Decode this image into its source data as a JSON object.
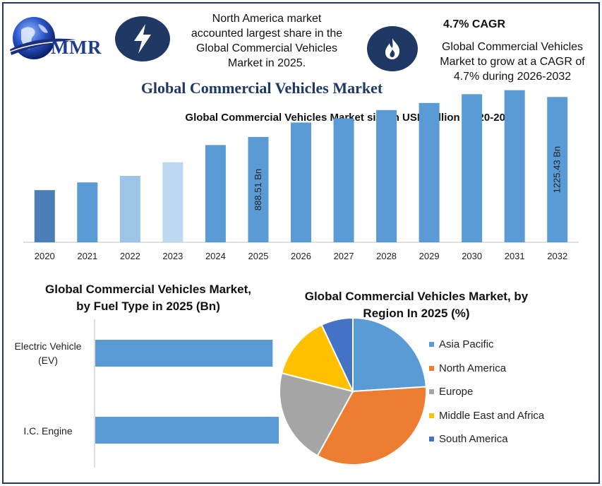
{
  "brand": {
    "name": "MMR"
  },
  "header": {
    "info_left": [
      "North America market",
      "accounted largest share in the",
      "Global Commercial Vehicles",
      "Market in 2025."
    ],
    "cagr_title": "4.7% CAGR",
    "info_right": [
      "Global Commercial Vehicles",
      "Market to grow at a CAGR of",
      "4.7% during 2026-2032"
    ],
    "left_icon": "lightning-bolt-icon",
    "right_icon": "flame-icon"
  },
  "main_title": "Global Commercial Vehicles Market",
  "colors": {
    "frame": "#1f3864",
    "bar_main": "#5b9bd5",
    "bar_2020": "#4a7fb5",
    "bar_2022": "#9dc3e6",
    "bar_2023": "#bdd7ee",
    "asia_pacific": "#5b9bd5",
    "north_america": "#ed7d31",
    "europe": "#a5a5a5",
    "middle_east_africa": "#ffc000",
    "south_america": "#4472c4"
  },
  "chart_data": [
    {
      "type": "bar",
      "title": "Global Commercial Vehicles Market size in USD Billion (2020-2032)",
      "categories": [
        "2020",
        "2021",
        "2022",
        "2023",
        "2024",
        "2025",
        "2026",
        "2027",
        "2028",
        "2029",
        "2030",
        "2031",
        "2032"
      ],
      "values": [
        440,
        505,
        560,
        675,
        820,
        888.51,
        1010,
        1045,
        1115,
        1175,
        1249,
        1283,
        1225.43
      ],
      "data_labels": {
        "5": "888.51 Bn",
        "12": "1225.43 Bn"
      },
      "ylim": [
        0,
        1400
      ],
      "grid": false,
      "xlabel": "",
      "ylabel": ""
    },
    {
      "type": "bar",
      "orientation": "horizontal",
      "title": "Global Commercial Vehicles Market, by Fuel Type in 2025 (Bn)",
      "title_lines": [
        "Global Commercial Vehicles Market,",
        "by Fuel Type in 2025 (Bn)"
      ],
      "categories": [
        [
          "Electric Vehicle",
          "(EV)"
        ],
        [
          "I.C. Engine"
        ]
      ],
      "values": [
        290,
        390
      ],
      "xlim": [
        0,
        450
      ]
    },
    {
      "type": "pie",
      "title": "Global Commercial Vehicles Market, by Region In 2025 (%)",
      "title_lines": [
        "Global Commercial Vehicles Market, by",
        "Region In 2025 (%)"
      ],
      "labels": [
        "Asia Pacific",
        "North America",
        "Europe",
        "Middle East and Africa",
        "South America"
      ],
      "values": [
        24,
        34,
        21,
        14,
        7
      ],
      "legend": "right"
    }
  ]
}
